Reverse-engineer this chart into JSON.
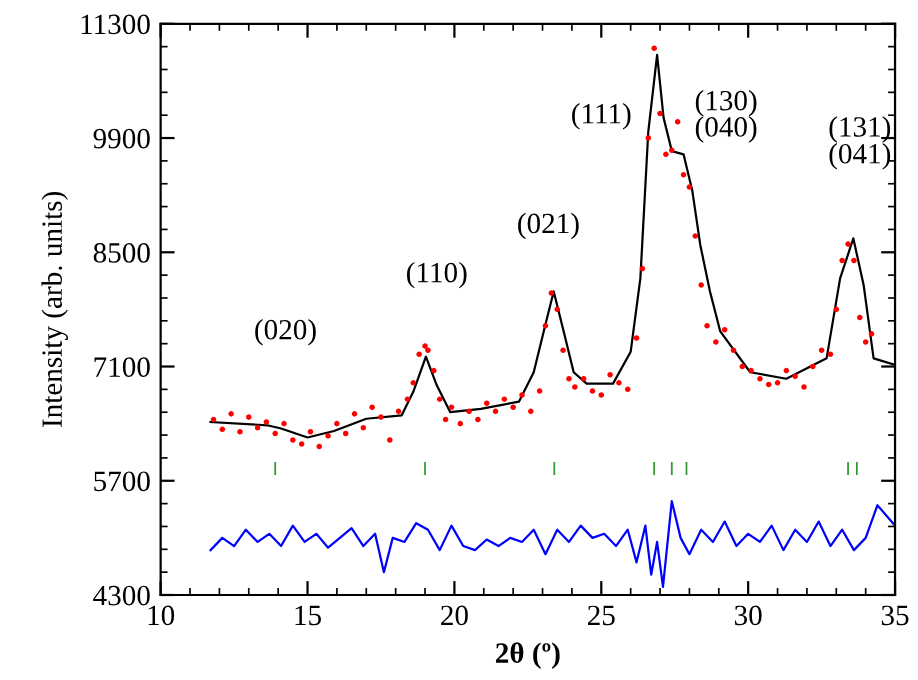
{
  "chart_data": {
    "type": "scatter",
    "xlabel": "2θ (º)",
    "ylabel": "Intensity (arb. units)",
    "xlim": [
      10,
      35
    ],
    "ylim": [
      4300,
      11300
    ],
    "xticks": [
      10,
      15,
      20,
      25,
      30,
      35
    ],
    "yticks": [
      4300,
      5700,
      7100,
      8500,
      9900,
      11300
    ],
    "grid": false,
    "legend": false,
    "series": [
      {
        "marker": "circle",
        "color": "#ff0000",
        "x": [
          11.8,
          12.1,
          12.4,
          12.7,
          13.0,
          13.3,
          13.6,
          13.9,
          14.2,
          14.5,
          14.8,
          15.1,
          15.4,
          15.7,
          16.0,
          16.3,
          16.6,
          16.9,
          17.2,
          17.5,
          17.8,
          18.1,
          18.4,
          18.6,
          18.8,
          19.0,
          19.1,
          19.3,
          19.5,
          19.7,
          19.9,
          20.2,
          20.5,
          20.8,
          21.1,
          21.4,
          21.7,
          22.0,
          22.3,
          22.6,
          22.9,
          23.1,
          23.3,
          23.5,
          23.7,
          23.9,
          24.1,
          24.4,
          24.7,
          25.0,
          25.3,
          25.6,
          25.9,
          26.2,
          26.4,
          26.6,
          26.8,
          27.0,
          27.2,
          27.4,
          27.6,
          27.8,
          28.0,
          28.2,
          28.4,
          28.6,
          28.9,
          29.2,
          29.5,
          29.8,
          30.1,
          30.4,
          30.7,
          31.0,
          31.3,
          31.6,
          31.9,
          32.2,
          32.5,
          32.8,
          33.0,
          33.2,
          33.4,
          33.6,
          33.8,
          34.0,
          34.2
        ],
        "values": [
          6450,
          6330,
          6520,
          6300,
          6480,
          6350,
          6420,
          6280,
          6400,
          6200,
          6150,
          6300,
          6120,
          6250,
          6400,
          6280,
          6520,
          6350,
          6600,
          6480,
          6200,
          6550,
          6700,
          6900,
          7250,
          7350,
          7300,
          7050,
          6700,
          6450,
          6600,
          6400,
          6550,
          6450,
          6650,
          6550,
          6700,
          6600,
          6750,
          6550,
          6800,
          7600,
          8000,
          7800,
          7300,
          6950,
          6850,
          6950,
          6800,
          6750,
          7000,
          6900,
          6820,
          7450,
          8300,
          9900,
          11000,
          10200,
          9700,
          9750,
          10100,
          9450,
          9300,
          8700,
          8100,
          7600,
          7400,
          7550,
          7300,
          7100,
          7050,
          6950,
          6880,
          6900,
          7050,
          6980,
          6850,
          7100,
          7300,
          7250,
          7800,
          8400,
          8600,
          8400,
          7700,
          7400,
          7500
        ]
      },
      {
        "type": "line",
        "color": "#000000",
        "x": [
          11.7,
          13.63,
          14.1,
          15.0,
          15.9,
          17.0,
          18.2,
          18.6,
          19.03,
          19.4,
          19.86,
          20.9,
          22.2,
          22.7,
          23.04,
          23.38,
          23.72,
          24.06,
          24.5,
          25.4,
          26.0,
          26.33,
          26.6,
          26.9,
          27.12,
          27.4,
          27.8,
          28.1,
          28.37,
          28.7,
          29.05,
          30.07,
          31.3,
          32.67,
          33.13,
          33.58,
          33.93,
          34.27,
          35.0
        ],
        "values": [
          6420,
          6380,
          6340,
          6230,
          6310,
          6460,
          6500,
          6790,
          7220,
          6870,
          6540,
          6580,
          6670,
          7030,
          7530,
          8020,
          7530,
          7030,
          6890,
          6890,
          7280,
          8180,
          9980,
          10920,
          10150,
          9740,
          9700,
          9250,
          8590,
          8020,
          7530,
          7030,
          6950,
          7200,
          8180,
          8670,
          8100,
          7200,
          7120
        ]
      },
      {
        "type": "bar",
        "color": "#339933",
        "x": [
          13.9,
          19.0,
          23.4,
          26.8,
          27.4,
          27.9,
          33.4,
          33.7
        ],
        "base": [
          5770,
          5770,
          5770,
          5770,
          5770,
          5770,
          5770,
          5770
        ],
        "values": [
          160,
          160,
          160,
          160,
          160,
          160,
          160,
          160
        ]
      },
      {
        "type": "line",
        "color": "#0000ff",
        "x": [
          11.7,
          12.1,
          12.5,
          12.9,
          13.3,
          13.7,
          14.1,
          14.5,
          14.9,
          15.3,
          15.7,
          16.1,
          16.5,
          16.9,
          17.3,
          17.6,
          17.9,
          18.3,
          18.7,
          19.1,
          19.5,
          19.9,
          20.3,
          20.7,
          21.1,
          21.5,
          21.9,
          22.3,
          22.7,
          23.1,
          23.5,
          23.9,
          24.3,
          24.7,
          25.1,
          25.5,
          25.9,
          26.2,
          26.5,
          26.7,
          26.9,
          27.1,
          27.4,
          27.7,
          28.0,
          28.4,
          28.8,
          29.2,
          29.6,
          30.0,
          30.4,
          30.8,
          31.2,
          31.6,
          32.0,
          32.4,
          32.8,
          33.2,
          33.6,
          34.0,
          34.4,
          35.0
        ],
        "values": [
          4850,
          5000,
          4900,
          5100,
          4950,
          5050,
          4900,
          5150,
          4950,
          5050,
          4880,
          5000,
          5120,
          4900,
          5050,
          4580,
          5000,
          4950,
          5180,
          5100,
          4850,
          5150,
          4900,
          4850,
          4980,
          4900,
          5000,
          4950,
          5100,
          4800,
          5100,
          4950,
          5150,
          5000,
          5050,
          4900,
          5100,
          4700,
          5150,
          4550,
          4950,
          4400,
          5450,
          5000,
          4800,
          5100,
          4950,
          5200,
          4900,
          5050,
          4950,
          5150,
          4850,
          5100,
          4950,
          5200,
          4900,
          5100,
          4850,
          5000,
          5400,
          5150
        ]
      }
    ],
    "annotations": [
      "(020)",
      "(110)",
      "(021)",
      "(111)",
      "(130)",
      "(040)",
      "(131)",
      "(041)"
    ]
  }
}
